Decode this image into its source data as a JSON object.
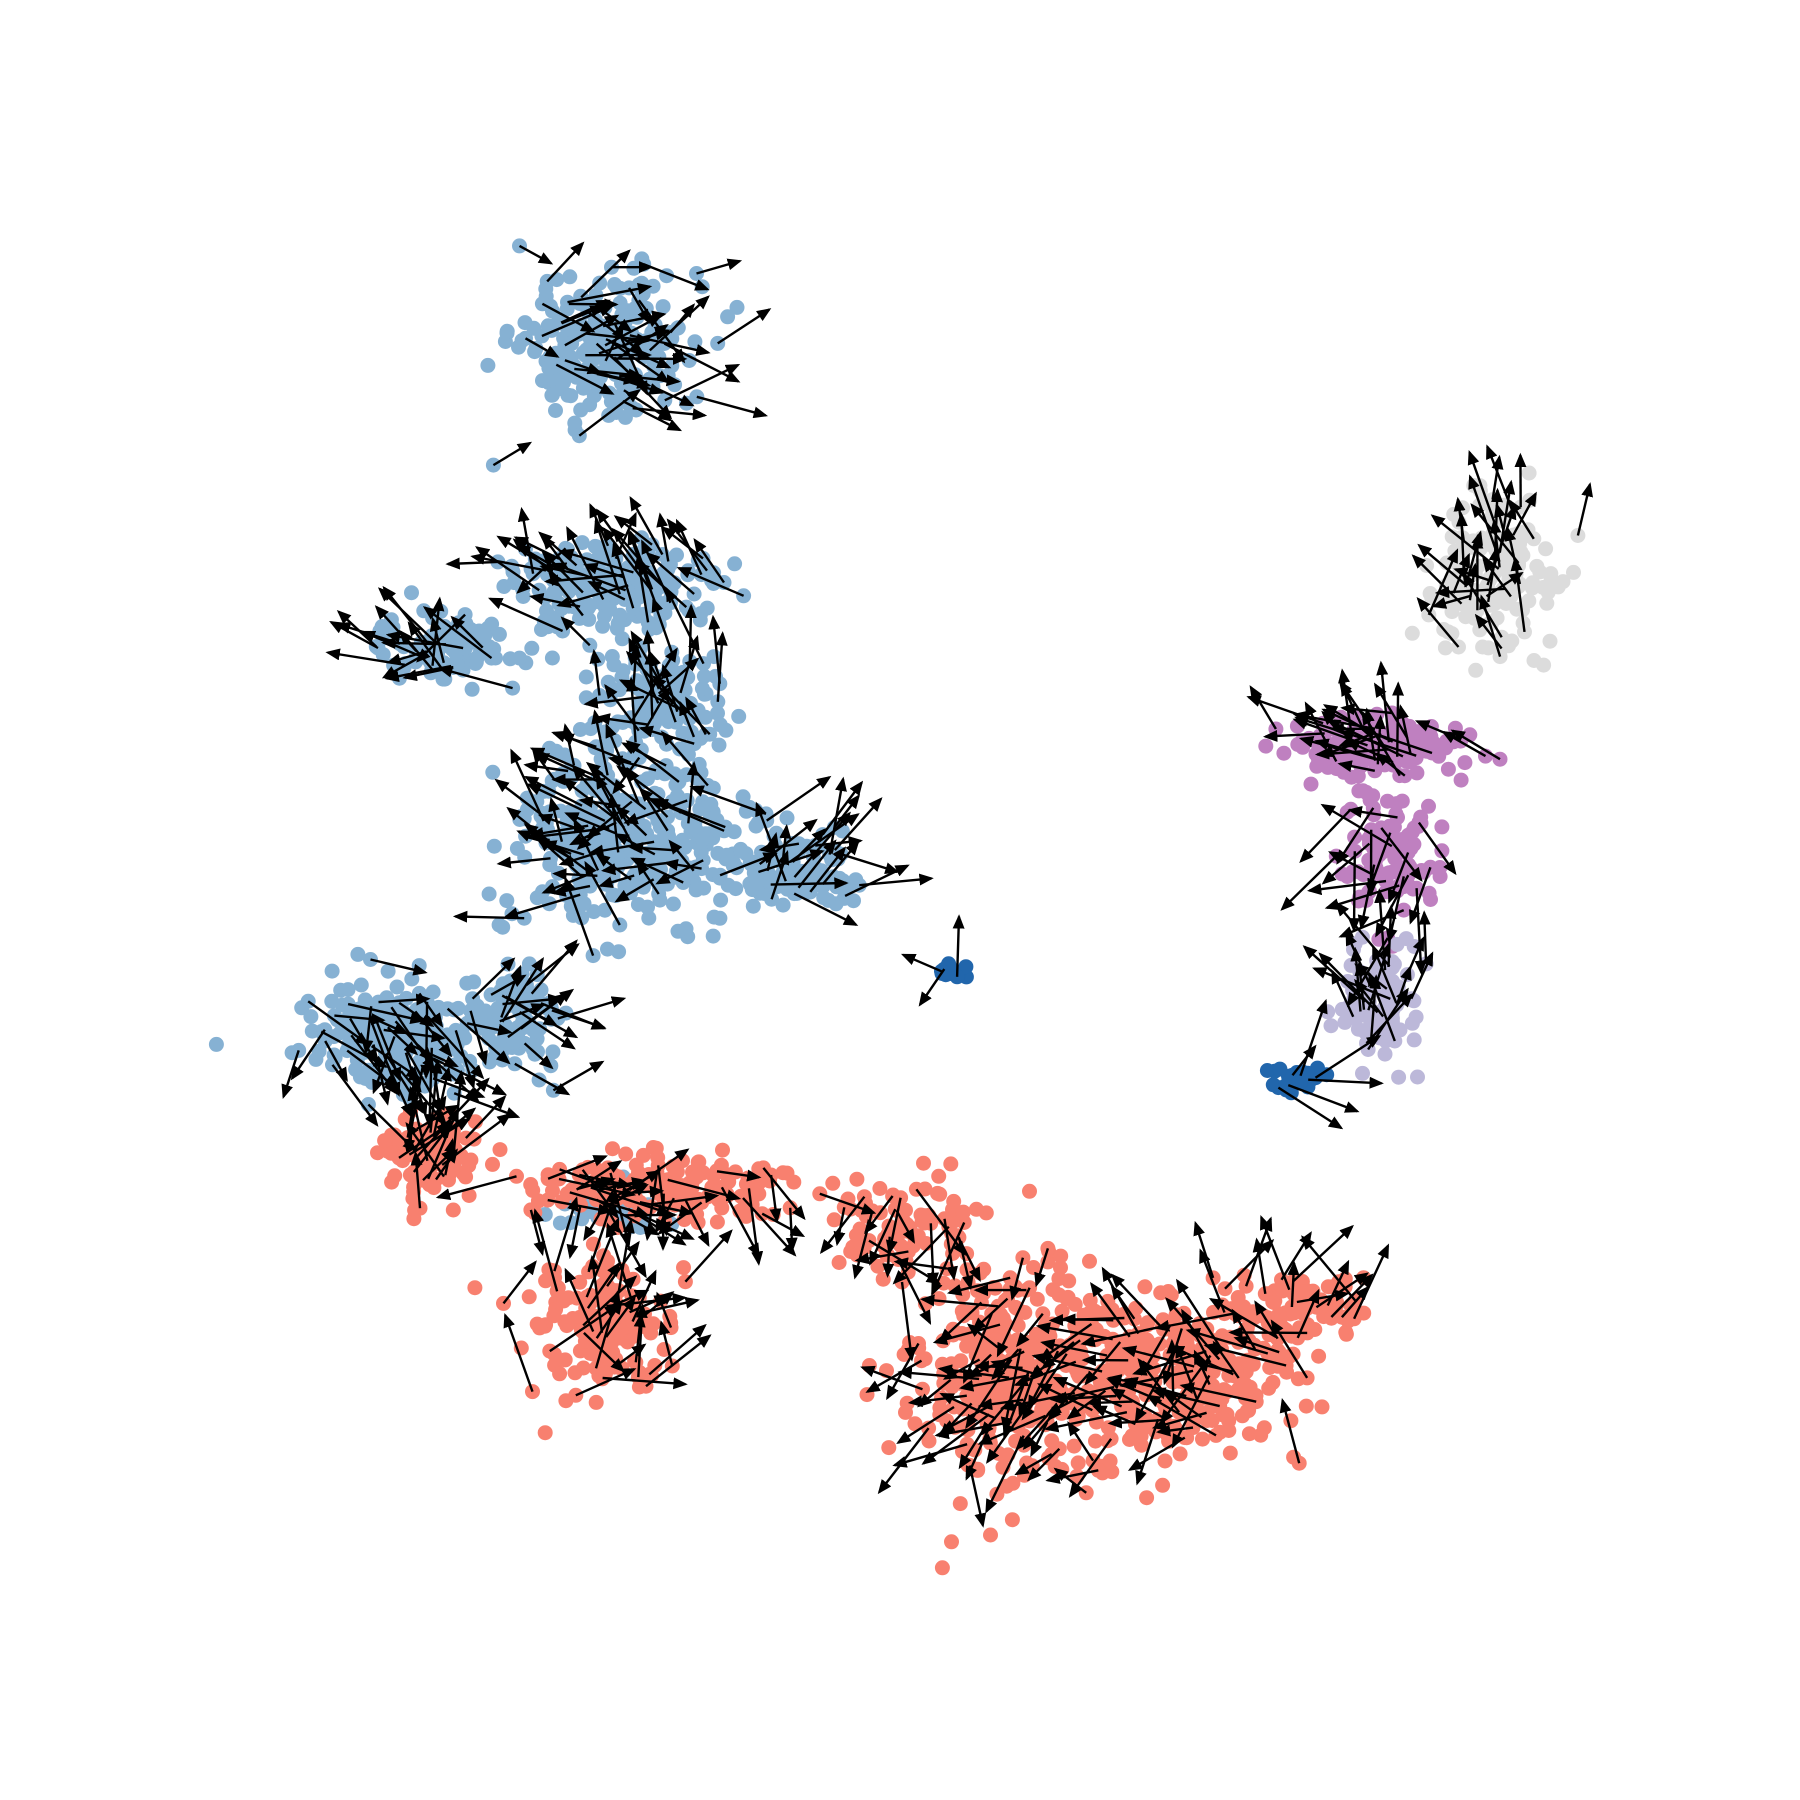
{
  "chart_data": {
    "type": "scatter",
    "title": "",
    "xlabel": "",
    "ylabel": "",
    "axes_visible": false,
    "grid": false,
    "legend": "none",
    "xlim": [
      0,
      100
    ],
    "ylim": [
      0,
      100
    ],
    "arrow_color": "#000000",
    "series": [
      {
        "color": "#86b1d3",
        "clusters": [
          {
            "cx": 33.5,
            "cy": 80.8,
            "rx": 4.5,
            "ry": 3.8,
            "n": 260
          },
          {
            "cx": 34.0,
            "cy": 67.5,
            "rx": 5.5,
            "ry": 2.5,
            "n": 220
          },
          {
            "cx": 25.0,
            "cy": 64.0,
            "rx": 3.5,
            "ry": 1.8,
            "n": 110
          },
          {
            "cx": 36.5,
            "cy": 61.0,
            "rx": 3.5,
            "ry": 2.8,
            "n": 140
          },
          {
            "cx": 35.0,
            "cy": 53.5,
            "rx": 6.5,
            "ry": 4.5,
            "n": 360
          },
          {
            "cx": 44.0,
            "cy": 51.5,
            "rx": 4.0,
            "ry": 2.2,
            "n": 120
          },
          {
            "cx": 22.0,
            "cy": 42.5,
            "rx": 4.5,
            "ry": 3.2,
            "n": 240
          },
          {
            "cx": 28.5,
            "cy": 43.5,
            "rx": 2.5,
            "ry": 3.0,
            "n": 90
          },
          {
            "cx": 34.0,
            "cy": 33.0,
            "rx": 3.0,
            "ry": 1.2,
            "n": 50
          }
        ]
      },
      {
        "color": "#f8806f",
        "clusters": [
          {
            "cx": 24.0,
            "cy": 35.8,
            "rx": 2.5,
            "ry": 2.2,
            "n": 110
          },
          {
            "cx": 36.5,
            "cy": 34.0,
            "rx": 8.0,
            "ry": 1.8,
            "n": 170
          },
          {
            "cx": 33.5,
            "cy": 26.0,
            "rx": 4.0,
            "ry": 3.8,
            "n": 170
          },
          {
            "cx": 56.5,
            "cy": 24.0,
            "rx": 6.0,
            "ry": 6.5,
            "n": 360
          },
          {
            "cx": 66.0,
            "cy": 23.5,
            "rx": 6.0,
            "ry": 4.0,
            "n": 280
          },
          {
            "cx": 50.0,
            "cy": 32.0,
            "rx": 4.0,
            "ry": 3.0,
            "n": 90
          },
          {
            "cx": 72.0,
            "cy": 27.5,
            "rx": 3.5,
            "ry": 1.8,
            "n": 80
          }
        ]
      },
      {
        "color": "#bf80c0",
        "clusters": [
          {
            "cx": 76.5,
            "cy": 58.5,
            "rx": 4.5,
            "ry": 1.5,
            "n": 180
          },
          {
            "cx": 77.5,
            "cy": 52.5,
            "rx": 2.5,
            "ry": 3.5,
            "n": 110
          }
        ]
      },
      {
        "color": "#bcb8d9",
        "clusters": [
          {
            "cx": 76.5,
            "cy": 44.5,
            "rx": 2.0,
            "ry": 3.5,
            "n": 110
          }
        ]
      },
      {
        "color": "#dcdcdc",
        "clusters": [
          {
            "cx": 83.0,
            "cy": 68.0,
            "rx": 3.0,
            "ry": 4.5,
            "n": 180
          }
        ]
      },
      {
        "color": "#2166ac",
        "clusters": [
          {
            "cx": 72.0,
            "cy": 40.0,
            "rx": 1.5,
            "ry": 0.8,
            "n": 30
          },
          {
            "cx": 53.0,
            "cy": 46.0,
            "rx": 1.0,
            "ry": 0.4,
            "n": 12
          }
        ]
      }
    ]
  }
}
